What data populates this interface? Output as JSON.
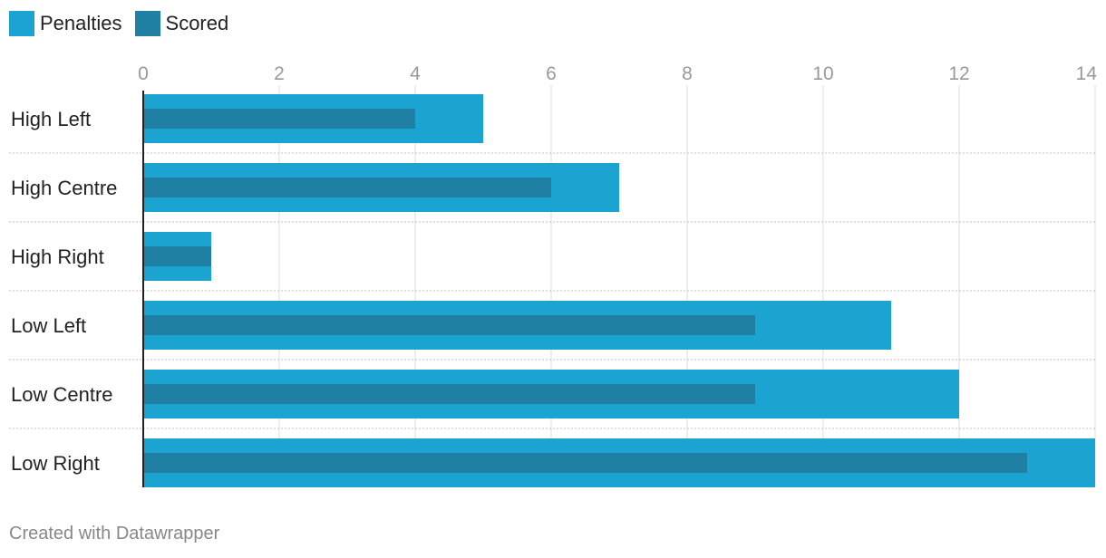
{
  "legend": {
    "items": [
      {
        "label": "Penalties",
        "color": "#1ba3d1"
      },
      {
        "label": "Scored",
        "color": "#1f80a4"
      }
    ]
  },
  "footer": {
    "credit": "Created with Datawrapper"
  },
  "chart_data": {
    "type": "bar",
    "orientation": "horizontal",
    "categories": [
      "High Left",
      "High Centre",
      "High Right",
      "Low Left",
      "Low Centre",
      "Low Right"
    ],
    "series": [
      {
        "name": "Penalties",
        "values": [
          5,
          7,
          1,
          11,
          12,
          14
        ],
        "color": "#1ba3d1"
      },
      {
        "name": "Scored",
        "values": [
          4,
          6,
          1,
          9,
          9,
          13
        ],
        "color": "#1f80a4"
      }
    ],
    "xlim": [
      0,
      14
    ],
    "x_ticks": [
      0,
      2,
      4,
      6,
      8,
      10,
      12,
      14
    ],
    "grid": true,
    "legend_position": "top-left"
  }
}
